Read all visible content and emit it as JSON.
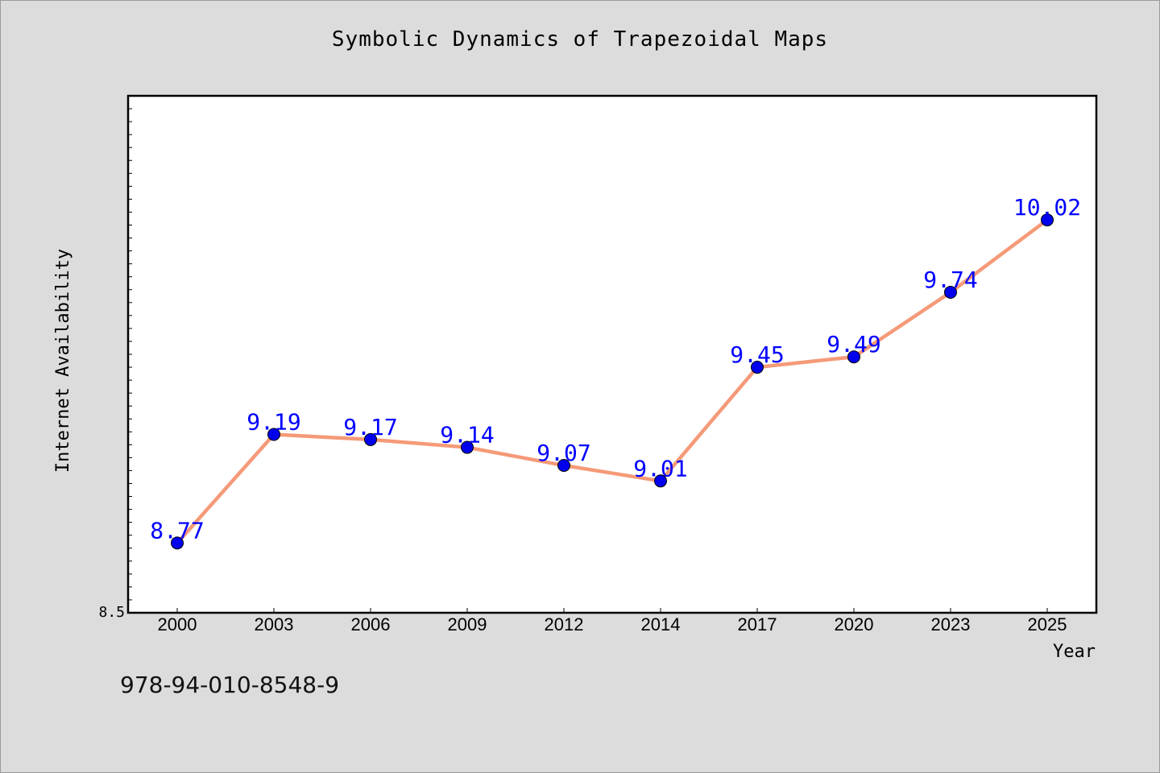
{
  "chart_data": {
    "type": "line",
    "title": "Symbolic Dynamics of Trapezoidal Maps",
    "xlabel": "Year",
    "ylabel": "Internet Availability",
    "categories": [
      "2000",
      "2003",
      "2006",
      "2009",
      "2012",
      "2014",
      "2017",
      "2020",
      "2023",
      "2025"
    ],
    "series": [
      {
        "values": [
          8.77,
          9.19,
          9.17,
          9.14,
          9.07,
          9.01,
          9.45,
          9.49,
          9.74,
          10.02
        ],
        "line_color": "#f59a78",
        "marker_color": "#0000ee",
        "label_color": "#0000ff"
      }
    ],
    "data_labels": [
      "8.77",
      "9.19",
      "9.17",
      "9.14",
      "9.07",
      "9.01",
      "9.45",
      "9.49",
      "9.74",
      "10.02"
    ],
    "ylim": [
      8.5,
      10.5
    ],
    "y_tick_labels": [
      "8.5"
    ],
    "grid": false,
    "legend": "none"
  },
  "footer": {
    "isbn": "978-94-010-8548-9"
  },
  "colors": {
    "background": "#dcdcdc",
    "plot_background": "#ffffff",
    "axis": "#000000"
  }
}
